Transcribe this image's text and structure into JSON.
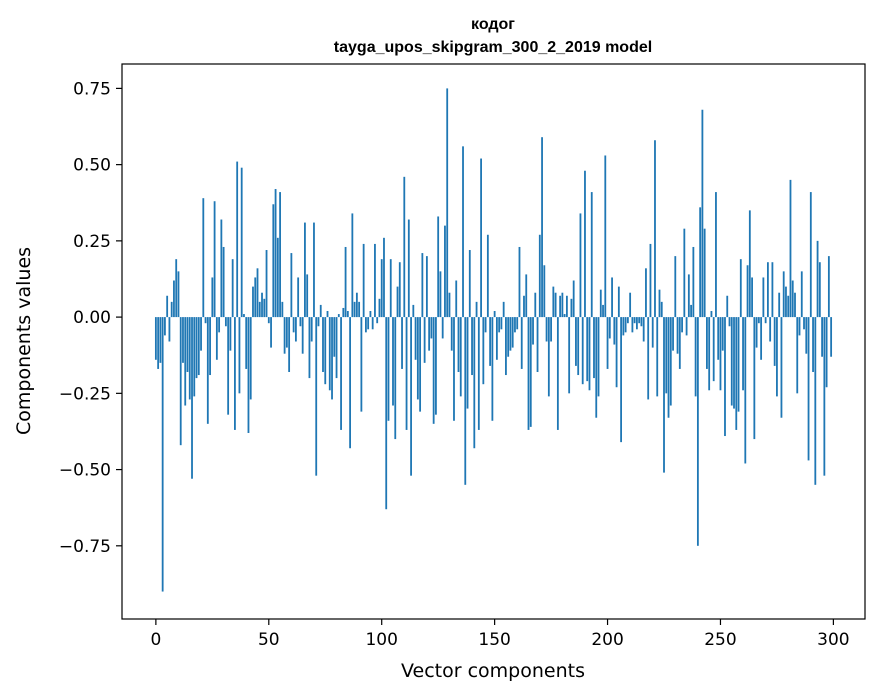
{
  "chart_data": {
    "type": "bar",
    "title": "кодог",
    "subtitle": "tayga_upos_skipgram_300_2_2019 model",
    "xlabel": "Vector components",
    "ylabel": "Components values",
    "xlim": [
      -15,
      314
    ],
    "ylim": [
      -0.99,
      0.83
    ],
    "xticks": [
      0,
      50,
      100,
      150,
      200,
      250,
      300
    ],
    "yticks": [
      -0.75,
      -0.5,
      -0.25,
      0.0,
      0.25,
      0.5,
      0.75
    ],
    "xtick_labels": [
      "0",
      "50",
      "100",
      "150",
      "200",
      "250",
      "300"
    ],
    "ytick_labels": [
      "−0.75",
      "−0.50",
      "−0.25",
      "0.00",
      "0.25",
      "0.50",
      "0.75"
    ],
    "grid": false,
    "bar_color": "#1f77b4",
    "x": [
      0,
      1,
      2,
      3,
      4,
      5,
      6,
      7,
      8,
      9,
      10,
      11,
      12,
      13,
      14,
      15,
      16,
      17,
      18,
      19,
      20,
      21,
      22,
      23,
      24,
      25,
      26,
      27,
      28,
      29,
      30,
      31,
      32,
      33,
      34,
      35,
      36,
      37,
      38,
      39,
      40,
      41,
      42,
      43,
      44,
      45,
      46,
      47,
      48,
      49,
      50,
      51,
      52,
      53,
      54,
      55,
      56,
      57,
      58,
      59,
      60,
      61,
      62,
      63,
      64,
      65,
      66,
      67,
      68,
      69,
      70,
      71,
      72,
      73,
      74,
      75,
      76,
      77,
      78,
      79,
      80,
      81,
      82,
      83,
      84,
      85,
      86,
      87,
      88,
      89,
      90,
      91,
      92,
      93,
      94,
      95,
      96,
      97,
      98,
      99,
      100,
      101,
      102,
      103,
      104,
      105,
      106,
      107,
      108,
      109,
      110,
      111,
      112,
      113,
      114,
      115,
      116,
      117,
      118,
      119,
      120,
      121,
      122,
      123,
      124,
      125,
      126,
      127,
      128,
      129,
      130,
      131,
      132,
      133,
      134,
      135,
      136,
      137,
      138,
      139,
      140,
      141,
      142,
      143,
      144,
      145,
      146,
      147,
      148,
      149,
      150,
      151,
      152,
      153,
      154,
      155,
      156,
      157,
      158,
      159,
      160,
      161,
      162,
      163,
      164,
      165,
      166,
      167,
      168,
      169,
      170,
      171,
      172,
      173,
      174,
      175,
      176,
      177,
      178,
      179,
      180,
      181,
      182,
      183,
      184,
      185,
      186,
      187,
      188,
      189,
      190,
      191,
      192,
      193,
      194,
      195,
      196,
      197,
      198,
      199,
      200,
      201,
      202,
      203,
      204,
      205,
      206,
      207,
      208,
      209,
      210,
      211,
      212,
      213,
      214,
      215,
      216,
      217,
      218,
      219,
      220,
      221,
      222,
      223,
      224,
      225,
      226,
      227,
      228,
      229,
      230,
      231,
      232,
      233,
      234,
      235,
      236,
      237,
      238,
      239,
      240,
      241,
      242,
      243,
      244,
      245,
      246,
      247,
      248,
      249,
      250,
      251,
      252,
      253,
      254,
      255,
      256,
      257,
      258,
      259,
      260,
      261,
      262,
      263,
      264,
      265,
      266,
      267,
      268,
      269,
      270,
      271,
      272,
      273,
      274,
      275,
      276,
      277,
      278,
      279,
      280,
      281,
      282,
      283,
      284,
      285,
      286,
      287,
      288,
      289,
      290,
      291,
      292,
      293,
      294,
      295,
      296,
      297,
      298,
      299
    ],
    "values": [
      -0.14,
      -0.17,
      -0.15,
      -0.9,
      -0.06,
      0.07,
      -0.08,
      0.05,
      0.12,
      0.19,
      0.15,
      -0.42,
      -0.15,
      -0.29,
      -0.18,
      -0.27,
      -0.53,
      -0.26,
      -0.2,
      -0.19,
      -0.11,
      0.39,
      -0.02,
      -0.35,
      -0.19,
      0.13,
      0.38,
      -0.14,
      -0.05,
      0.32,
      0.23,
      -0.03,
      -0.32,
      -0.11,
      0.19,
      -0.37,
      0.51,
      -0.25,
      0.49,
      0.01,
      -0.17,
      -0.38,
      -0.27,
      0.1,
      0.13,
      0.16,
      0.05,
      0.08,
      0.06,
      0.22,
      -0.02,
      -0.1,
      0.37,
      0.42,
      0.26,
      0.41,
      0.05,
      -0.12,
      -0.1,
      -0.18,
      0.21,
      -0.05,
      -0.08,
      0.13,
      -0.03,
      -0.12,
      0.31,
      0.14,
      -0.2,
      -0.08,
      0.31,
      -0.52,
      -0.03,
      0.04,
      -0.18,
      -0.22,
      0.02,
      -0.24,
      -0.27,
      -0.13,
      -0.2,
      0.01,
      -0.37,
      0.03,
      0.23,
      0.02,
      -0.43,
      0.34,
      0.05,
      0.08,
      0.05,
      -0.31,
      0.24,
      -0.05,
      -0.04,
      0.02,
      -0.04,
      0.24,
      -0.02,
      0.06,
      0.19,
      0.26,
      -0.63,
      -0.34,
      0.19,
      -0.29,
      -0.4,
      0.1,
      0.18,
      -0.17,
      0.46,
      -0.37,
      0.32,
      -0.52,
      0.04,
      -0.14,
      -0.27,
      -0.31,
      0.21,
      -0.15,
      0.2,
      -0.11,
      -0.07,
      -0.35,
      -0.32,
      0.33,
      0.15,
      -0.07,
      0.3,
      0.75,
      0.08,
      -0.11,
      -0.34,
      0.12,
      -0.18,
      -0.26,
      0.56,
      -0.55,
      -0.3,
      0.22,
      -0.19,
      -0.43,
      0.05,
      -0.37,
      0.52,
      -0.22,
      -0.05,
      0.27,
      -0.16,
      -0.34,
      0.02,
      -0.14,
      -0.05,
      -0.04,
      0.05,
      -0.19,
      -0.13,
      -0.11,
      -0.1,
      -0.05,
      -0.04,
      0.23,
      -0.17,
      0.07,
      0.14,
      -0.37,
      -0.36,
      -0.09,
      0.08,
      -0.18,
      0.27,
      0.59,
      0.17,
      -0.08,
      -0.26,
      -0.08,
      0.1,
      0.08,
      -0.37,
      0.07,
      0.08,
      0.01,
      0.07,
      -0.25,
      0.06,
      0.12,
      -0.16,
      -0.19,
      0.34,
      -0.22,
      0.48,
      -0.21,
      -0.24,
      0.41,
      -0.2,
      -0.33,
      -0.26,
      0.09,
      0.04,
      0.53,
      -0.17,
      -0.07,
      0.13,
      -0.09,
      -0.23,
      0.1,
      -0.41,
      -0.06,
      -0.05,
      -0.02,
      0.08,
      -0.05,
      -0.02,
      -0.04,
      -0.02,
      -0.03,
      -0.08,
      0.16,
      -0.27,
      0.24,
      -0.1,
      0.58,
      -0.26,
      0.09,
      0.05,
      -0.51,
      -0.25,
      -0.33,
      -0.29,
      -0.11,
      0.2,
      -0.12,
      -0.17,
      -0.05,
      0.29,
      -0.06,
      0.14,
      0.04,
      0.23,
      -0.26,
      -0.75,
      0.36,
      0.68,
      0.29,
      -0.17,
      -0.24,
      0.02,
      -0.21,
      0.41,
      -0.14,
      -0.24,
      -0.11,
      -0.39,
      0.07,
      -0.03,
      -0.29,
      -0.3,
      -0.37,
      -0.31,
      0.19,
      -0.24,
      -0.48,
      0.17,
      0.35,
      0.13,
      -0.4,
      -0.1,
      -0.02,
      -0.14,
      0.13,
      -0.02,
      0.18,
      -0.08,
      0.18,
      -0.16,
      -0.26,
      0.08,
      -0.33,
      0.15,
      0.1,
      0.07,
      0.45,
      0.12,
      0.08,
      -0.25,
      -0.06,
      0.15,
      -0.04,
      -0.12,
      -0.47,
      0.41,
      -0.18,
      -0.55,
      0.25,
      0.18,
      -0.13,
      -0.52,
      -0.23,
      0.2,
      -0.13
    ]
  }
}
